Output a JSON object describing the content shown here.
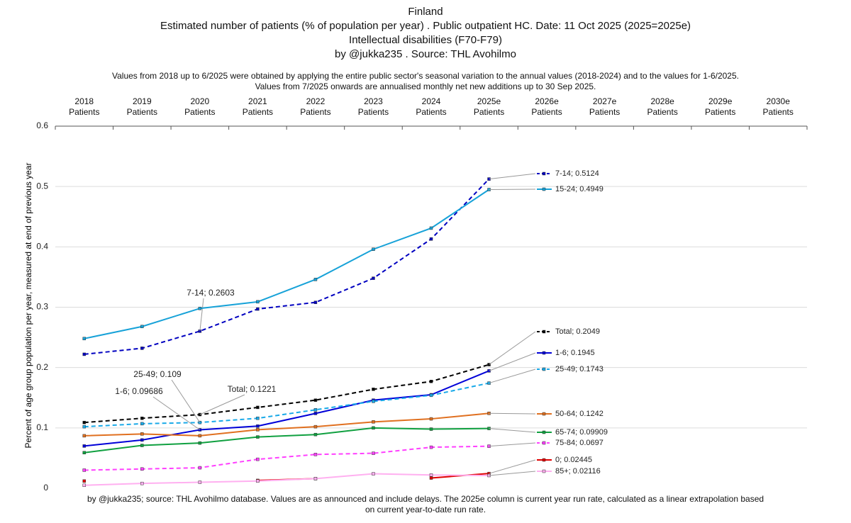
{
  "chart_data": {
    "type": "line",
    "title": [
      "Finland",
      "Estimated number of patients  (% of population per year) . Public outpatient HC. Date: 11 Oct 2025 (2025=2025e)",
      "Intellectual disabilities (F70-F79)",
      "by @jukka235 . Source: THL Avohilmo"
    ],
    "subtitle": [
      "Values from 2018 up to 6/2025 were obtained by applying the entire public sector's seasonal variation to the annual values (2018-2024) and to the values for 1-6/2025.",
      "Values from 7/2025 onwards are annualised monthly net new additions up to 30 Sep 2025."
    ],
    "footnote": "by @jukka235; source: THL Avohilmo database. Values are as announced and include delays. The 2025e column is current year run rate, calculated as a linear extrapolation based on current year-to-date run rate.",
    "y_label": "Percent of age group population per year, measured at end of previous year",
    "categories": [
      "2018 Patients",
      "2019 Patients",
      "2020 Patients",
      "2021 Patients",
      "2022 Patients",
      "2023 Patients",
      "2024 Patients",
      "2025e Patients",
      "2026e Patients",
      "2027e Patients",
      "2028e Patients",
      "2029e Patients",
      "2030e Patients"
    ],
    "ylim": [
      0,
      0.6
    ],
    "yticks": [
      0,
      0.1,
      0.2,
      0.3,
      0.4,
      0.5,
      0.6
    ],
    "grid": true,
    "series": [
      {
        "name": "7-14",
        "color": "#0000c0",
        "dash": true,
        "values": [
          0.222,
          0.232,
          0.2603,
          0.297,
          0.308,
          0.348,
          0.413,
          0.5124,
          null,
          null,
          null,
          null,
          null
        ],
        "value_labels": [
          null,
          null,
          "7-14; 0.2603",
          null,
          null,
          null,
          null,
          "7-14; 0.5124",
          null,
          null,
          null,
          null,
          null
        ]
      },
      {
        "name": "15-24",
        "color": "#17a2d8",
        "dash": false,
        "values": [
          0.248,
          0.268,
          0.298,
          0.309,
          0.346,
          0.396,
          0.431,
          0.4949,
          null,
          null,
          null,
          null,
          null
        ],
        "value_labels": [
          null,
          null,
          null,
          null,
          null,
          null,
          null,
          "15-24; 0.4949",
          null,
          null,
          null,
          null,
          null
        ]
      },
      {
        "name": "Total",
        "color": "#000000",
        "dash": true,
        "values": [
          0.109,
          0.116,
          0.1221,
          0.134,
          0.146,
          0.164,
          0.177,
          0.2049,
          null,
          null,
          null,
          null,
          null
        ],
        "value_labels": [
          null,
          null,
          "Total; 0.1221",
          null,
          null,
          null,
          null,
          "Total; 0.2049",
          null,
          null,
          null,
          null,
          null
        ]
      },
      {
        "name": "1-6",
        "color": "#0000d8",
        "dash": false,
        "values": [
          0.07,
          0.08,
          0.09686,
          0.103,
          0.124,
          0.146,
          0.155,
          0.1945,
          null,
          null,
          null,
          null,
          null
        ],
        "value_labels": [
          null,
          null,
          "1-6; 0.09686",
          null,
          null,
          null,
          null,
          "1-6; 0.1945",
          null,
          null,
          null,
          null,
          null
        ]
      },
      {
        "name": "25-49",
        "color": "#19a9e8",
        "dash": true,
        "values": [
          0.102,
          0.107,
          0.109,
          0.116,
          0.13,
          0.144,
          0.154,
          0.1743,
          null,
          null,
          null,
          null,
          null
        ],
        "value_labels": [
          null,
          null,
          "25-49; 0.109",
          null,
          null,
          null,
          null,
          "25-49; 0.1743",
          null,
          null,
          null,
          null,
          null
        ]
      },
      {
        "name": "50-64",
        "color": "#e07020",
        "dash": false,
        "values": [
          0.087,
          0.09,
          0.087,
          0.097,
          0.102,
          0.11,
          0.115,
          0.1242,
          null,
          null,
          null,
          null,
          null
        ],
        "value_labels": [
          null,
          null,
          null,
          null,
          null,
          null,
          null,
          "50-64; 0.1242",
          null,
          null,
          null,
          null,
          null
        ]
      },
      {
        "name": "65-74",
        "color": "#10a040",
        "dash": false,
        "values": [
          0.059,
          0.071,
          0.075,
          0.085,
          0.089,
          0.1,
          0.098,
          0.09909,
          null,
          null,
          null,
          null,
          null
        ],
        "value_labels": [
          null,
          null,
          null,
          null,
          null,
          null,
          null,
          "65-74; 0.09909",
          null,
          null,
          null,
          null,
          null
        ]
      },
      {
        "name": "75-84",
        "color": "#ff40ff",
        "dash": true,
        "values": [
          0.03,
          0.032,
          0.034,
          0.048,
          0.056,
          0.058,
          0.068,
          0.0697,
          null,
          null,
          null,
          null,
          null
        ],
        "value_labels": [
          null,
          null,
          null,
          null,
          null,
          null,
          null,
          "75-84; 0.0697",
          null,
          null,
          null,
          null,
          null
        ]
      },
      {
        "name": "0",
        "color": "#e00000",
        "dash": false,
        "values": [
          0.012,
          null,
          null,
          0.013,
          0.016,
          null,
          0.017,
          0.02445,
          null,
          null,
          null,
          null,
          null
        ],
        "value_labels": [
          null,
          null,
          null,
          null,
          null,
          null,
          null,
          "0; 0.02445",
          null,
          null,
          null,
          null,
          null
        ]
      },
      {
        "name": "85+",
        "color": "#ffb0f0",
        "dash": false,
        "values": [
          0.005,
          0.008,
          0.01,
          0.012,
          0.016,
          0.024,
          0.022,
          0.02116,
          null,
          null,
          null,
          null,
          null
        ],
        "value_labels": [
          null,
          null,
          null,
          null,
          null,
          null,
          null,
          "85+; 0.02116",
          null,
          null,
          null,
          null,
          null
        ]
      }
    ]
  }
}
